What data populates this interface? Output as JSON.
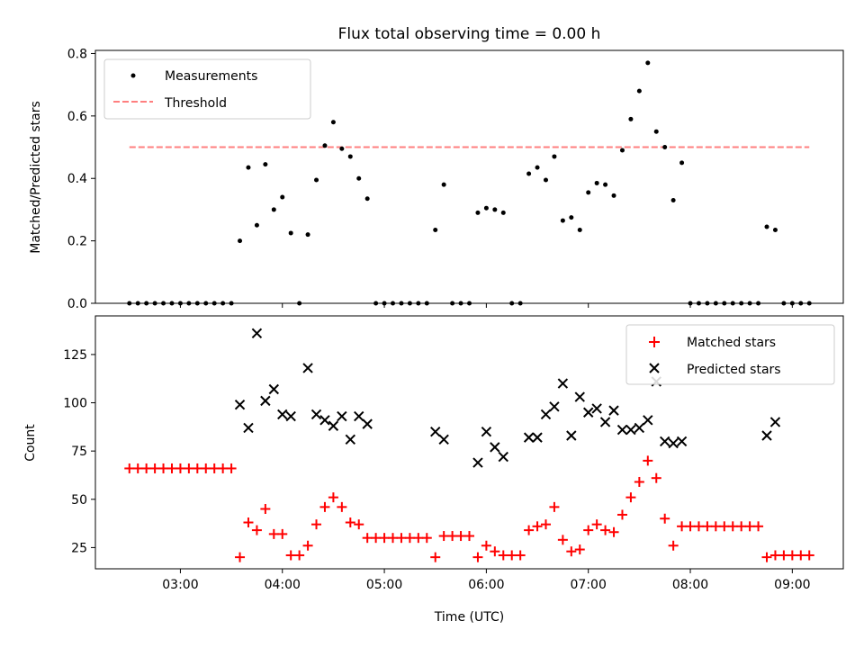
{
  "chart_data": [
    {
      "type": "scatter",
      "panel": "top",
      "title": "Flux total observing time = 0.00 h",
      "xlabel": "",
      "ylabel": "Matched/Predicted stars",
      "xlim": [
        "02:10",
        "09:30"
      ],
      "ylim": [
        0,
        0.81
      ],
      "yticks": [
        0.0,
        0.2,
        0.4,
        0.6,
        0.8
      ],
      "ytick_labels": [
        "0.0",
        "0.2",
        "0.4",
        "0.6",
        "0.8"
      ],
      "xticks": [
        "03:00",
        "04:00",
        "05:00",
        "06:00",
        "07:00",
        "08:00",
        "09:00"
      ],
      "grid": false,
      "legend_position": "top-left",
      "threshold": {
        "name": "Threshold",
        "value": 0.5,
        "x_start": "02:30",
        "x_end": "09:10",
        "color": "#ff7f7f",
        "style": "dashed"
      },
      "series": [
        {
          "name": "Measurements",
          "marker": "dot",
          "color": "#000000",
          "points": [
            [
              "02:30",
              0.0
            ],
            [
              "02:35",
              0.0
            ],
            [
              "02:40",
              0.0
            ],
            [
              "02:45",
              0.0
            ],
            [
              "02:50",
              0.0
            ],
            [
              "02:55",
              0.0
            ],
            [
              "03:00",
              0.0
            ],
            [
              "03:05",
              0.0
            ],
            [
              "03:10",
              0.0
            ],
            [
              "03:15",
              0.0
            ],
            [
              "03:20",
              0.0
            ],
            [
              "03:25",
              0.0
            ],
            [
              "03:30",
              0.0
            ],
            [
              "03:35",
              0.2
            ],
            [
              "03:40",
              0.435
            ],
            [
              "03:45",
              0.25
            ],
            [
              "03:50",
              0.445
            ],
            [
              "03:55",
              0.3
            ],
            [
              "04:00",
              0.34
            ],
            [
              "04:05",
              0.225
            ],
            [
              "04:10",
              0.0
            ],
            [
              "04:15",
              0.22
            ],
            [
              "04:20",
              0.395
            ],
            [
              "04:25",
              0.505
            ],
            [
              "04:30",
              0.58
            ],
            [
              "04:35",
              0.495
            ],
            [
              "04:40",
              0.47
            ],
            [
              "04:45",
              0.4
            ],
            [
              "04:50",
              0.335
            ],
            [
              "04:55",
              0.0
            ],
            [
              "05:00",
              0.0
            ],
            [
              "05:05",
              0.0
            ],
            [
              "05:10",
              0.0
            ],
            [
              "05:15",
              0.0
            ],
            [
              "05:20",
              0.0
            ],
            [
              "05:25",
              0.0
            ],
            [
              "05:30",
              0.235
            ],
            [
              "05:35",
              0.38
            ],
            [
              "05:40",
              0.0
            ],
            [
              "05:45",
              0.0
            ],
            [
              "05:50",
              0.0
            ],
            [
              "05:55",
              0.29
            ],
            [
              "06:00",
              0.305
            ],
            [
              "06:05",
              0.3
            ],
            [
              "06:10",
              0.29
            ],
            [
              "06:15",
              0.0
            ],
            [
              "06:20",
              0.0
            ],
            [
              "06:25",
              0.415
            ],
            [
              "06:30",
              0.435
            ],
            [
              "06:35",
              0.395
            ],
            [
              "06:40",
              0.47
            ],
            [
              "06:45",
              0.265
            ],
            [
              "06:50",
              0.275
            ],
            [
              "06:55",
              0.235
            ],
            [
              "07:00",
              0.355
            ],
            [
              "07:05",
              0.385
            ],
            [
              "07:10",
              0.38
            ],
            [
              "07:15",
              0.345
            ],
            [
              "07:20",
              0.49
            ],
            [
              "07:25",
              0.59
            ],
            [
              "07:30",
              0.68
            ],
            [
              "07:35",
              0.77
            ],
            [
              "07:40",
              0.55
            ],
            [
              "07:45",
              0.5
            ],
            [
              "07:50",
              0.33
            ],
            [
              "07:55",
              0.45
            ],
            [
              "08:00",
              0.0
            ],
            [
              "08:05",
              0.0
            ],
            [
              "08:10",
              0.0
            ],
            [
              "08:15",
              0.0
            ],
            [
              "08:20",
              0.0
            ],
            [
              "08:25",
              0.0
            ],
            [
              "08:30",
              0.0
            ],
            [
              "08:35",
              0.0
            ],
            [
              "08:40",
              0.0
            ],
            [
              "08:45",
              0.245
            ],
            [
              "08:50",
              0.235
            ],
            [
              "08:55",
              0.0
            ],
            [
              "09:00",
              0.0
            ],
            [
              "09:05",
              0.0
            ],
            [
              "09:10",
              0.0
            ]
          ]
        }
      ]
    },
    {
      "type": "scatter",
      "panel": "bottom",
      "title": "",
      "xlabel": "Time (UTC)",
      "ylabel": "Count",
      "xlim": [
        "02:10",
        "09:30"
      ],
      "ylim": [
        14,
        145
      ],
      "yticks": [
        25,
        50,
        75,
        100,
        125
      ],
      "ytick_labels": [
        "25",
        "50",
        "75",
        "100",
        "125"
      ],
      "xticks": [
        "03:00",
        "04:00",
        "05:00",
        "06:00",
        "07:00",
        "08:00",
        "09:00"
      ],
      "grid": false,
      "legend_position": "top-right",
      "series": [
        {
          "name": "Matched stars",
          "marker": "plus",
          "color": "#ff0000",
          "points": [
            [
              "02:30",
              66
            ],
            [
              "02:35",
              66
            ],
            [
              "02:40",
              66
            ],
            [
              "02:45",
              66
            ],
            [
              "02:50",
              66
            ],
            [
              "02:55",
              66
            ],
            [
              "03:00",
              66
            ],
            [
              "03:05",
              66
            ],
            [
              "03:10",
              66
            ],
            [
              "03:15",
              66
            ],
            [
              "03:20",
              66
            ],
            [
              "03:25",
              66
            ],
            [
              "03:30",
              66
            ],
            [
              "03:35",
              20
            ],
            [
              "03:40",
              38
            ],
            [
              "03:45",
              34
            ],
            [
              "03:50",
              45
            ],
            [
              "03:55",
              32
            ],
            [
              "04:00",
              32
            ],
            [
              "04:05",
              21
            ],
            [
              "04:10",
              21
            ],
            [
              "04:15",
              26
            ],
            [
              "04:20",
              37
            ],
            [
              "04:25",
              46
            ],
            [
              "04:30",
              51
            ],
            [
              "04:35",
              46
            ],
            [
              "04:40",
              38
            ],
            [
              "04:45",
              37
            ],
            [
              "04:50",
              30
            ],
            [
              "04:55",
              30
            ],
            [
              "05:00",
              30
            ],
            [
              "05:05",
              30
            ],
            [
              "05:10",
              30
            ],
            [
              "05:15",
              30
            ],
            [
              "05:20",
              30
            ],
            [
              "05:25",
              30
            ],
            [
              "05:30",
              20
            ],
            [
              "05:35",
              31
            ],
            [
              "05:40",
              31
            ],
            [
              "05:45",
              31
            ],
            [
              "05:50",
              31
            ],
            [
              "05:55",
              20
            ],
            [
              "06:00",
              26
            ],
            [
              "06:05",
              23
            ],
            [
              "06:10",
              21
            ],
            [
              "06:15",
              21
            ],
            [
              "06:20",
              21
            ],
            [
              "06:25",
              34
            ],
            [
              "06:30",
              36
            ],
            [
              "06:35",
              37
            ],
            [
              "06:40",
              46
            ],
            [
              "06:45",
              29
            ],
            [
              "06:50",
              23
            ],
            [
              "06:55",
              24
            ],
            [
              "07:00",
              34
            ],
            [
              "07:05",
              37
            ],
            [
              "07:10",
              34
            ],
            [
              "07:15",
              33
            ],
            [
              "07:20",
              42
            ],
            [
              "07:25",
              51
            ],
            [
              "07:30",
              59
            ],
            [
              "07:35",
              70
            ],
            [
              "07:40",
              61
            ],
            [
              "07:45",
              40
            ],
            [
              "07:50",
              26
            ],
            [
              "07:55",
              36
            ],
            [
              "08:00",
              36
            ],
            [
              "08:05",
              36
            ],
            [
              "08:10",
              36
            ],
            [
              "08:15",
              36
            ],
            [
              "08:20",
              36
            ],
            [
              "08:25",
              36
            ],
            [
              "08:30",
              36
            ],
            [
              "08:35",
              36
            ],
            [
              "08:40",
              36
            ],
            [
              "08:45",
              20
            ],
            [
              "08:50",
              21
            ],
            [
              "08:55",
              21
            ],
            [
              "09:00",
              21
            ],
            [
              "09:05",
              21
            ],
            [
              "09:10",
              21
            ]
          ]
        },
        {
          "name": "Predicted stars",
          "marker": "x",
          "color": "#000000",
          "points": [
            [
              "03:35",
              99
            ],
            [
              "03:40",
              87
            ],
            [
              "03:45",
              136
            ],
            [
              "03:50",
              101
            ],
            [
              "03:55",
              107
            ],
            [
              "04:00",
              94
            ],
            [
              "04:05",
              93
            ],
            [
              "04:15",
              118
            ],
            [
              "04:20",
              94
            ],
            [
              "04:25",
              91
            ],
            [
              "04:30",
              88
            ],
            [
              "04:35",
              93
            ],
            [
              "04:40",
              81
            ],
            [
              "04:45",
              93
            ],
            [
              "04:50",
              89
            ],
            [
              "05:30",
              85
            ],
            [
              "05:35",
              81
            ],
            [
              "05:55",
              69
            ],
            [
              "06:00",
              85
            ],
            [
              "06:05",
              77
            ],
            [
              "06:10",
              72
            ],
            [
              "06:25",
              82
            ],
            [
              "06:30",
              82
            ],
            [
              "06:35",
              94
            ],
            [
              "06:40",
              98
            ],
            [
              "06:45",
              110
            ],
            [
              "06:50",
              83
            ],
            [
              "06:55",
              103
            ],
            [
              "07:00",
              95
            ],
            [
              "07:05",
              97
            ],
            [
              "07:10",
              90
            ],
            [
              "07:15",
              96
            ],
            [
              "07:20",
              86
            ],
            [
              "07:25",
              86
            ],
            [
              "07:30",
              87
            ],
            [
              "07:35",
              91
            ],
            [
              "07:40",
              111
            ],
            [
              "07:45",
              80
            ],
            [
              "07:50",
              79
            ],
            [
              "07:55",
              80
            ],
            [
              "08:45",
              83
            ],
            [
              "08:50",
              90
            ]
          ]
        }
      ]
    }
  ]
}
